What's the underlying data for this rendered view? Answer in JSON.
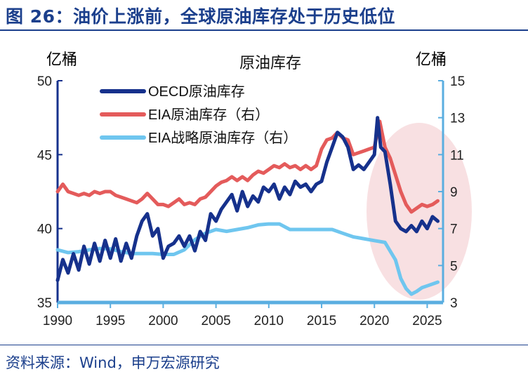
{
  "header": {
    "title": "图 26：油价上涨前，全球原油库存处于历史低位"
  },
  "footer": {
    "source": "资料来源：Wind，申万宏源研究"
  },
  "chart_data": {
    "type": "line",
    "title": "原油库存",
    "y_left_label": "亿桶",
    "y_right_label": "亿桶",
    "xlim": [
      1990,
      2026.5
    ],
    "ylim_left": [
      35,
      50
    ],
    "ylim_right": [
      3,
      15
    ],
    "x_ticks": [
      1990,
      1995,
      2000,
      2005,
      2010,
      2015,
      2020,
      2025
    ],
    "y_left_ticks": [
      35,
      40,
      45,
      50
    ],
    "y_right_ticks": [
      3,
      5,
      7,
      9,
      11,
      13,
      15
    ],
    "grid": false,
    "legend_position": "top-left",
    "colors": {
      "oecd": "#16318c",
      "eia": "#e45b5b",
      "spr": "#6fc6ef",
      "left_axis": "#16318c",
      "right_axis": "#5aaee0",
      "highlight": "#f6d5d8",
      "title_text": "#1b3f8c"
    },
    "annotation": "2022年起库存明显回落区域（椭圆高亮）",
    "series": [
      {
        "name": "OECD原油库存",
        "axis": "left",
        "x": [
          1990.0,
          1990.5,
          1991.0,
          1991.5,
          1992.0,
          1992.5,
          1993.0,
          1993.5,
          1994.0,
          1994.5,
          1995.0,
          1995.5,
          1996.0,
          1996.5,
          1997.0,
          1997.5,
          1998.0,
          1998.5,
          1999.0,
          1999.5,
          2000.0,
          2000.5,
          2001.0,
          2001.5,
          2002.0,
          2002.5,
          2003.0,
          2003.5,
          2004.0,
          2004.5,
          2005.0,
          2005.5,
          2006.0,
          2006.5,
          2007.0,
          2007.5,
          2008.0,
          2008.5,
          2009.0,
          2009.5,
          2010.0,
          2010.5,
          2011.0,
          2011.5,
          2012.0,
          2012.5,
          2013.0,
          2013.5,
          2014.0,
          2014.5,
          2015.0,
          2015.5,
          2016.0,
          2016.5,
          2017.0,
          2017.5,
          2018.0,
          2018.5,
          2019.0,
          2019.5,
          2020.0,
          2020.3,
          2020.6,
          2021.0,
          2021.5,
          2022.0,
          2022.5,
          2023.0,
          2023.5,
          2024.0,
          2024.5,
          2025.0,
          2025.5,
          2026.0
        ],
        "values": [
          36.5,
          37.9,
          37.0,
          38.3,
          37.2,
          38.8,
          37.6,
          39.0,
          37.8,
          39.2,
          38.0,
          39.3,
          37.8,
          39.0,
          38.0,
          39.5,
          40.5,
          41.0,
          39.5,
          40.0,
          38.0,
          38.8,
          39.0,
          39.5,
          38.8,
          39.5,
          38.5,
          39.8,
          39.2,
          41.0,
          40.5,
          41.3,
          41.8,
          42.3,
          41.2,
          42.5,
          41.5,
          42.2,
          41.8,
          42.8,
          42.5,
          43.0,
          42.0,
          42.8,
          42.3,
          43.2,
          42.8,
          43.0,
          42.5,
          43.0,
          43.2,
          44.5,
          45.5,
          46.5,
          46.2,
          45.5,
          44.0,
          44.3,
          44.0,
          44.5,
          45.0,
          47.5,
          45.5,
          45.2,
          43.0,
          40.5,
          40.0,
          39.8,
          40.2,
          39.8,
          40.5,
          40.0,
          40.8,
          40.5
        ]
      },
      {
        "name": "EIA原油库存（右）",
        "axis": "right",
        "x": [
          1990.0,
          1990.5,
          1991.0,
          1991.5,
          1992.0,
          1992.5,
          1993.0,
          1993.5,
          1994.0,
          1994.5,
          1995.0,
          1995.5,
          1996.0,
          1996.5,
          1997.0,
          1997.5,
          1998.0,
          1998.5,
          1999.0,
          1999.5,
          2000.0,
          2000.5,
          2001.0,
          2001.5,
          2002.0,
          2002.5,
          2003.0,
          2003.5,
          2004.0,
          2004.5,
          2005.0,
          2005.5,
          2006.0,
          2006.5,
          2007.0,
          2007.5,
          2008.0,
          2008.5,
          2009.0,
          2009.5,
          2010.0,
          2010.5,
          2011.0,
          2011.5,
          2012.0,
          2012.5,
          2013.0,
          2013.5,
          2014.0,
          2014.5,
          2015.0,
          2015.5,
          2016.0,
          2016.5,
          2017.0,
          2017.5,
          2018.0,
          2018.5,
          2019.0,
          2019.5,
          2020.0,
          2020.5,
          2021.0,
          2021.5,
          2022.0,
          2022.5,
          2023.0,
          2023.5,
          2024.0,
          2024.5,
          2025.0,
          2025.5,
          2026.0
        ],
        "values": [
          9.0,
          9.4,
          9.0,
          8.9,
          8.8,
          8.9,
          8.8,
          9.0,
          8.9,
          9.0,
          9.0,
          8.8,
          8.7,
          8.6,
          8.5,
          8.4,
          8.6,
          8.9,
          8.6,
          8.3,
          8.3,
          8.2,
          8.4,
          8.6,
          8.3,
          8.4,
          8.3,
          8.6,
          8.7,
          9.0,
          9.3,
          9.5,
          9.6,
          9.8,
          9.6,
          9.8,
          9.6,
          9.9,
          10.1,
          10.0,
          10.2,
          10.4,
          10.3,
          10.5,
          10.3,
          10.4,
          10.2,
          10.4,
          10.2,
          10.4,
          11.3,
          11.8,
          11.9,
          12.2,
          11.9,
          11.8,
          11.0,
          11.1,
          11.2,
          11.3,
          11.4,
          12.8,
          11.4,
          10.8,
          9.9,
          9.0,
          8.3,
          7.9,
          8.1,
          8.3,
          8.2,
          8.3,
          8.5
        ]
      },
      {
        "name": "EIA战略原油库存（右）",
        "axis": "right",
        "x": [
          1990.0,
          1991.0,
          1992.0,
          1993.0,
          1994.0,
          1995.0,
          1996.0,
          1997.0,
          1998.0,
          1999.0,
          2000.0,
          2001.0,
          2002.0,
          2003.0,
          2004.0,
          2005.0,
          2006.0,
          2007.0,
          2008.0,
          2009.0,
          2010.0,
          2011.0,
          2012.0,
          2013.0,
          2014.0,
          2015.0,
          2016.0,
          2017.0,
          2018.0,
          2019.0,
          2020.0,
          2021.0,
          2022.0,
          2022.5,
          2023.0,
          2023.5,
          2024.0,
          2024.5,
          2025.0,
          2026.0
        ],
        "values": [
          5.85,
          5.7,
          5.75,
          5.85,
          5.92,
          5.9,
          5.75,
          5.65,
          5.65,
          5.65,
          5.6,
          5.6,
          5.85,
          6.4,
          6.75,
          6.95,
          6.85,
          6.95,
          7.05,
          7.2,
          7.25,
          7.25,
          6.95,
          6.95,
          6.95,
          6.95,
          6.95,
          6.75,
          6.55,
          6.45,
          6.35,
          6.25,
          5.3,
          4.3,
          3.75,
          3.45,
          3.6,
          3.8,
          3.9,
          4.1
        ]
      }
    ]
  }
}
